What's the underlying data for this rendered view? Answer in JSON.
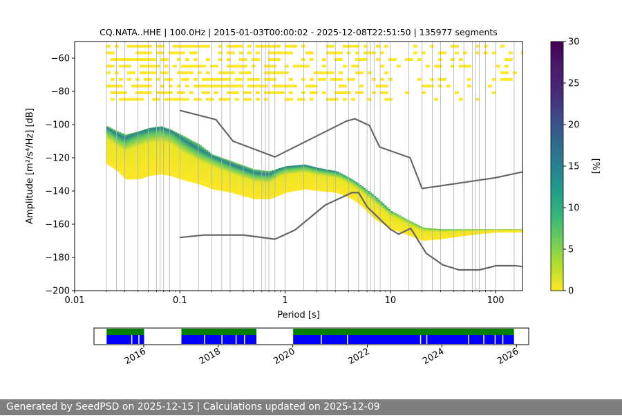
{
  "chart_data": [
    {
      "type": "heatmap",
      "title": "CQ.NATA..HHE | 100.0Hz | 2015-01-03T00:00:02 - 2025-12-08T22:51:50 | 135977 segments",
      "xlabel": "Period [s]",
      "ylabel": "Amplitude [m²/s⁴/Hz] [dB]",
      "xscale": "log",
      "xlim": [
        0.01,
        180
      ],
      "ylim": [
        -200,
        -50
      ],
      "xticks": [
        0.01,
        0.1,
        1,
        10,
        100
      ],
      "xtick_labels": [
        "0.01",
        "0.1",
        "1",
        "10",
        "100"
      ],
      "yticks": [
        -200,
        -180,
        -160,
        -140,
        -120,
        -100,
        -80,
        -60
      ],
      "ytick_labels": [
        "−200",
        "−180",
        "−160",
        "−140",
        "−120",
        "−100",
        "−80",
        "−60"
      ],
      "grid": "vertical period grid lines",
      "colormap": "viridis",
      "colorbar": {
        "label": "[%]",
        "range": [
          0,
          30
        ],
        "ticks": [
          0,
          5,
          10,
          15,
          20,
          25,
          30
        ],
        "tick_labels": [
          "0",
          "5",
          "10",
          "15",
          "20",
          "25",
          "30"
        ]
      },
      "psd_envelope": {
        "periods": [
          0.02,
          0.025,
          0.03,
          0.04,
          0.05,
          0.065,
          0.08,
          0.1,
          0.15,
          0.2,
          0.3,
          0.5,
          0.7,
          1,
          1.5,
          2,
          3,
          4,
          5,
          7,
          10,
          15,
          20,
          30,
          50,
          100,
          180
        ],
        "upper_db": [
          -101,
          -104,
          -106,
          -104,
          -102,
          -101,
          -103,
          -106,
          -112,
          -118,
          -122,
          -127,
          -128,
          -125,
          -124,
          -126,
          -128,
          -132,
          -136,
          -143,
          -152,
          -158,
          -162,
          -163,
          -163,
          -163,
          -163
        ],
        "lower_db": [
          -124,
          -128,
          -133,
          -133,
          -131,
          -130,
          -131,
          -133,
          -136,
          -139,
          -141,
          -145,
          -145,
          -141,
          -139,
          -140,
          -141,
          -144,
          -148,
          -157,
          -163,
          -167,
          -170,
          -169,
          -167,
          -165,
          -165
        ],
        "mode_db": [
          -102,
          -106,
          -108,
          -104,
          -102,
          -101,
          -103,
          -108,
          -115,
          -119,
          -124,
          -129,
          -130,
          -124,
          -123,
          -124,
          -127,
          -130,
          -133,
          -140,
          -147,
          -149,
          -151,
          -149,
          -147,
          -146,
          -146
        ]
      },
      "series": [
        {
          "name": "",
          "color": "#666666",
          "x": [
            0.1,
            0.22,
            0.32,
            0.8,
            3.8,
            4.6,
            6.3,
            7.9,
            15.4,
            20,
            100,
            180
          ],
          "y": [
            -91.5,
            -97,
            -110,
            -119.5,
            -98,
            -96.5,
            -100.5,
            -113.5,
            -120,
            -138.5,
            -132,
            -128.5
          ]
        },
        {
          "name": "",
          "color": "#666666",
          "x": [
            0.1,
            0.17,
            0.4,
            0.8,
            1.24,
            2.4,
            4.3,
            5.0,
            6.0,
            10,
            12,
            15.6,
            21.9,
            31.6,
            45,
            70,
            101,
            154,
            180
          ],
          "y": [
            -168,
            -166.5,
            -166.5,
            -169,
            -163.5,
            -148.5,
            -141,
            -141,
            -149.5,
            -163,
            -166,
            -162.5,
            -177.5,
            -184.5,
            -187.5,
            -187.5,
            -185,
            -185,
            -185.5
          ]
        }
      ]
    },
    {
      "type": "bar",
      "title": "",
      "xlabel": "",
      "ylabel": "",
      "xscale": "time",
      "xlim": [
        "2014-09-01",
        "2026-05-01"
      ],
      "xtick_labels": [
        "2016",
        "2018",
        "2020",
        "2022",
        "2024",
        "2026"
      ],
      "series": [
        {
          "name": "",
          "color": "#008000",
          "segments": [
            [
              "2015-01-03",
              "2016-01-05"
            ],
            [
              "2017-01-05",
              "2019-01-10"
            ],
            [
              "2020-01-05",
              "2025-12-08"
            ]
          ]
        },
        {
          "name": "",
          "color": "#0000ff",
          "segments": [
            [
              "2015-01-03",
              "2016-01-05"
            ],
            [
              "2017-01-05",
              "2019-01-10"
            ],
            [
              "2020-01-05",
              "2025-12-08"
            ]
          ]
        }
      ]
    }
  ],
  "footer": {
    "text": "Generated by SeedPSD on 2025-12-15 | Calculations updated on 2025-12-09"
  }
}
